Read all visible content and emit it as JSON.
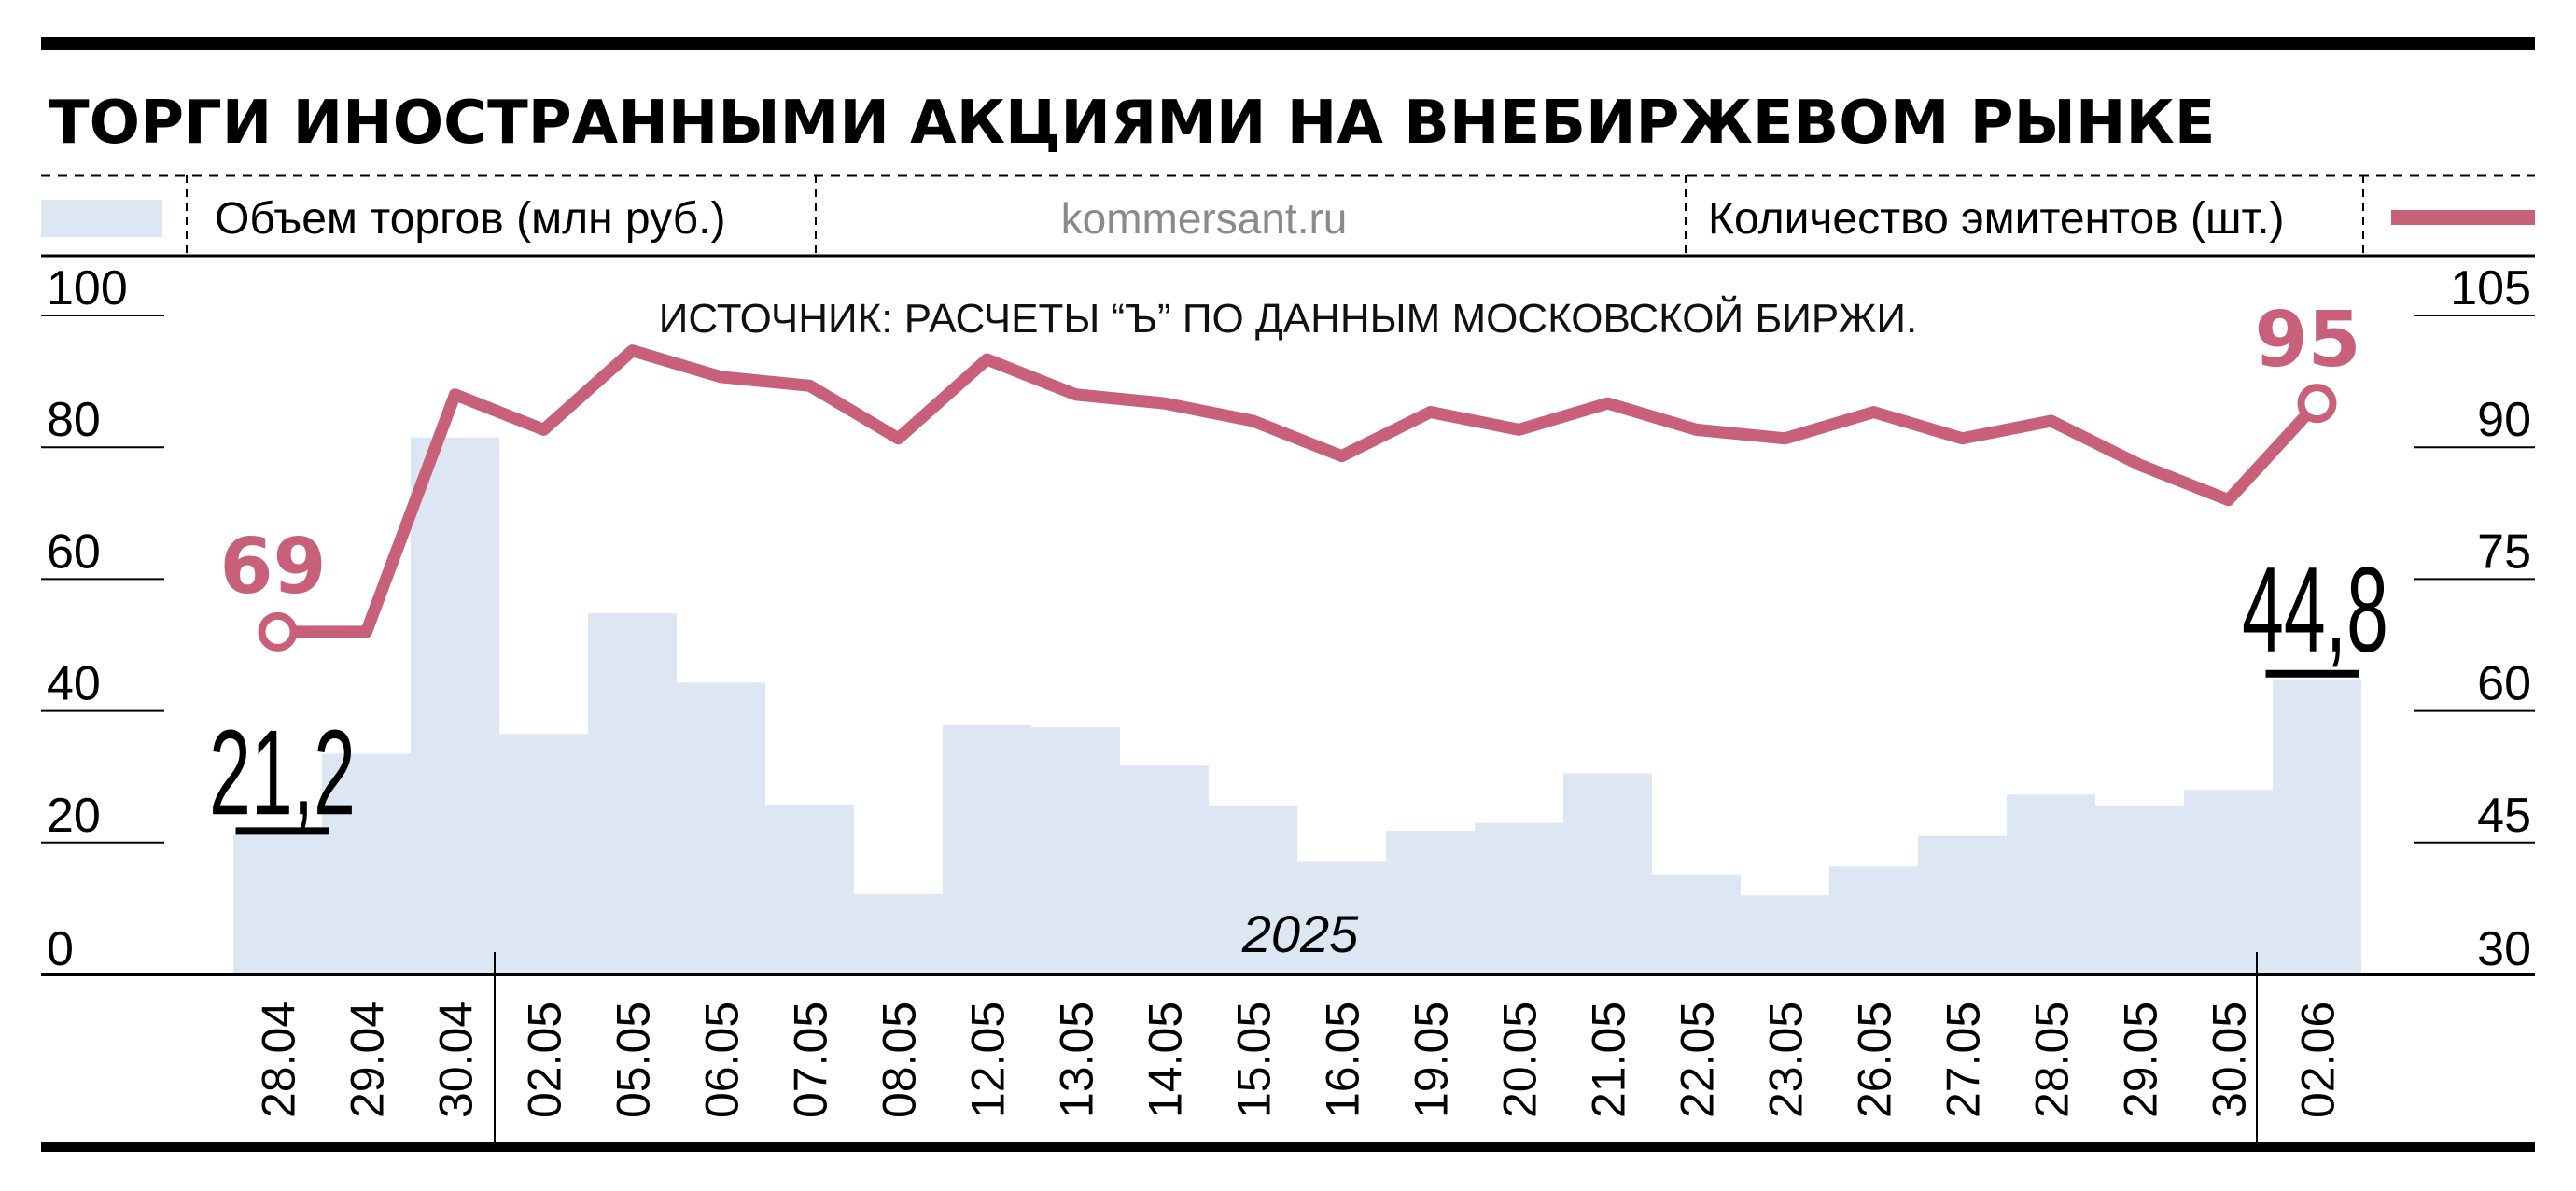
{
  "chart_data": {
    "type": "bar+line",
    "title": "ТОРГИ ИНОСТРАННЫМИ АКЦИЯМИ НА ВНЕБИРЖЕВОМ РЫНКЕ",
    "site": "kommersant.ru",
    "source": "ИСТОЧНИК: РАСЧЕТЫ “Ъ” ПО ДАННЫМ МОСКОВСКОЙ БИРЖИ.",
    "year_label": "2025",
    "categories": [
      "28.04",
      "29.04",
      "30.04",
      "02.05",
      "05.05",
      "06.05",
      "07.05",
      "08.05",
      "12.05",
      "13.05",
      "14.05",
      "15.05",
      "16.05",
      "19.05",
      "20.05",
      "21.05",
      "22.05",
      "23.05",
      "26.05",
      "27.05",
      "28.05",
      "29.05",
      "30.05",
      "02.06"
    ],
    "left_axis": {
      "ticks": [
        "100",
        "80",
        "60",
        "40",
        "20",
        "0"
      ],
      "range": [
        0,
        100
      ]
    },
    "right_axis": {
      "ticks": [
        "105",
        "90",
        "75",
        "60",
        "45",
        "30"
      ],
      "range": [
        30,
        105
      ]
    },
    "series": [
      {
        "name": "Объем торгов (млн руб.)",
        "kind": "bar",
        "axis": "left",
        "color": "#dde6f3",
        "values": [
          21.2,
          33.5,
          81.5,
          36.5,
          54.8,
          44.3,
          25.8,
          12.2,
          37.8,
          37.5,
          31.7,
          25.6,
          17.2,
          21.8,
          23.0,
          30.5,
          15.2,
          12.0,
          16.4,
          21.0,
          27.3,
          25.6,
          28.0,
          44.8
        ]
      },
      {
        "name": "Количество эмитентов (шт.)",
        "kind": "line",
        "axis": "right",
        "color": "#c8607a",
        "values": [
          69,
          69,
          96,
          92,
          101,
          98,
          97,
          91,
          100,
          96,
          95,
          93,
          89,
          94,
          92,
          95,
          92,
          91,
          94,
          91,
          93,
          88,
          84,
          95
        ]
      }
    ],
    "callouts": {
      "bar_first": "21,2",
      "bar_last": "44,8",
      "line_first": "69",
      "line_last": "95"
    }
  }
}
